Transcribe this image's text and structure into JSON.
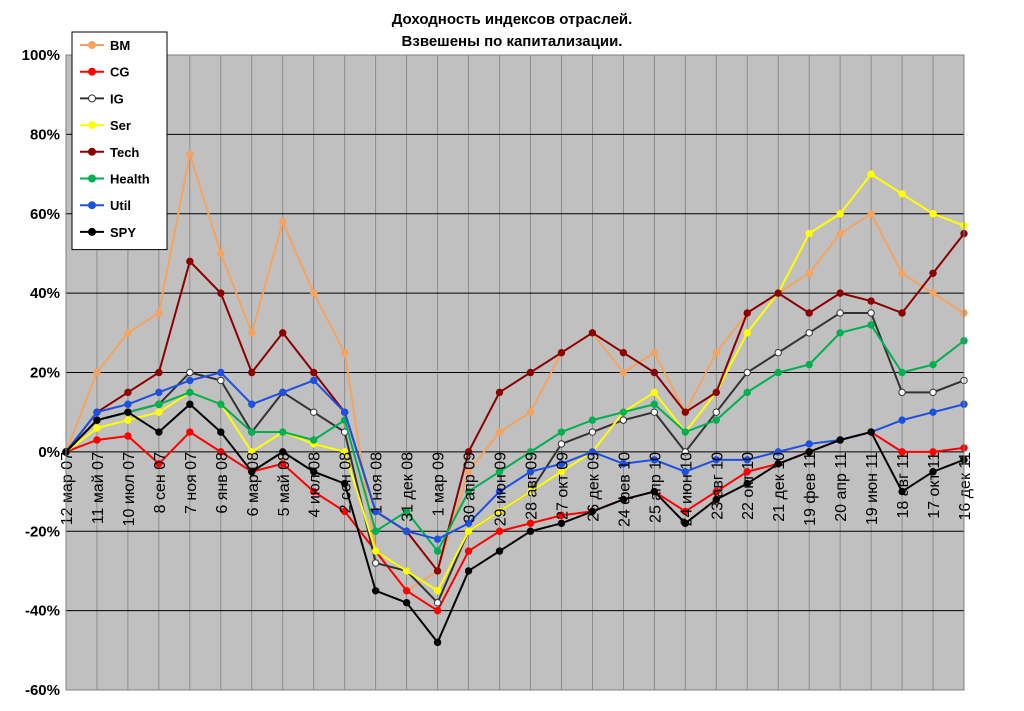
{
  "chart_data": {
    "type": "line",
    "title": "Доходность индексов отраслей.",
    "subtitle": "Взвешены по капитализации.",
    "xlabel": "",
    "ylabel": "",
    "y_tick_labels": [
      "100%",
      "80%",
      "60%",
      "40%",
      "20%",
      "0%",
      "-20%",
      "-40%",
      "-60%"
    ],
    "ylim": [
      -60,
      100
    ],
    "grid": "horizontal",
    "legend_position": "top-left",
    "x_tick_labels": [
      "12 мар 07",
      "11 май 07",
      "10 июл 07",
      "8 сен 07",
      "7 ноя 07",
      "6 янв 08",
      "6 мар 08",
      "5 май 08",
      "4 июл 08",
      "2 сен 08",
      "1 ноя 08",
      "31 дек 08",
      "1 мар 09",
      "30 апр 09",
      "29 июн 09",
      "28 авг 09",
      "27 окт 09",
      "26 дек 09",
      "24 фев 10",
      "25 апр 10",
      "24 июн 10",
      "23 авг 10",
      "22 окт 10",
      "21 дек 10",
      "19 фев 11",
      "20 апр 11",
      "19 июн 11",
      "18 авг 11",
      "17 окт 11",
      "16 дек 11"
    ],
    "x": [
      "12 мар 07",
      "11 май 07",
      "10 июл 07",
      "8 сен 07",
      "7 ноя 07",
      "6 янв 08",
      "6 мар 08",
      "5 май 08",
      "4 июл 08",
      "2 сен 08",
      "1 ноя 08",
      "31 дек 08",
      "1 мар 09",
      "30 апр 09",
      "29 июн 09",
      "28 авг 09",
      "27 окт 09",
      "26 дек 09",
      "24 фев 10",
      "25 апр 10",
      "24 июн 10",
      "23 авг 10",
      "22 окт 10",
      "21 дек 10",
      "19 фев 11",
      "20 апр 11",
      "19 июн 11",
      "18 авг 11",
      "17 окт 11",
      "16 дек 11"
    ],
    "series": [
      {
        "name": "BM",
        "color": "#f4a460",
        "marker": "filled",
        "values": [
          0,
          20,
          30,
          35,
          75,
          50,
          30,
          58,
          40,
          25,
          -25,
          -35,
          -30,
          -5,
          5,
          10,
          25,
          30,
          20,
          25,
          10,
          25,
          35,
          40,
          45,
          55,
          60,
          45,
          40,
          35
        ]
      },
      {
        "name": "CG",
        "color": "#ff0000",
        "marker": "filled",
        "values": [
          0,
          3,
          4,
          -3,
          5,
          0,
          -5,
          -3,
          -10,
          -15,
          -25,
          -35,
          -40,
          -25,
          -20,
          -18,
          -16,
          -15,
          -12,
          -10,
          -15,
          -10,
          -5,
          -3,
          0,
          3,
          5,
          0,
          0,
          1
        ]
      },
      {
        "name": "IG",
        "color": "#ffffff",
        "marker": "hollow",
        "values": [
          0,
          8,
          10,
          12,
          20,
          18,
          5,
          15,
          10,
          5,
          -28,
          -30,
          -38,
          -20,
          -15,
          -10,
          2,
          5,
          8,
          10,
          0,
          10,
          20,
          25,
          30,
          35,
          35,
          15,
          15,
          18
        ]
      },
      {
        "name": "Ser",
        "color": "#ffff00",
        "marker": "filled",
        "values": [
          0,
          6,
          8,
          10,
          15,
          12,
          0,
          5,
          2,
          0,
          -25,
          -30,
          -35,
          -20,
          -15,
          -10,
          -5,
          0,
          10,
          15,
          5,
          15,
          30,
          40,
          55,
          60,
          70,
          65,
          60,
          57
        ]
      },
      {
        "name": "Tech",
        "color": "#8b0000",
        "marker": "filled",
        "values": [
          0,
          10,
          15,
          20,
          48,
          40,
          20,
          30,
          20,
          10,
          -15,
          -20,
          -30,
          0,
          15,
          20,
          25,
          30,
          25,
          20,
          10,
          15,
          35,
          40,
          35,
          40,
          38,
          35,
          45,
          55
        ]
      },
      {
        "name": "Health",
        "color": "#00b050",
        "marker": "filled",
        "values": [
          0,
          8,
          10,
          12,
          15,
          12,
          5,
          5,
          3,
          8,
          -20,
          -15,
          -25,
          -10,
          -5,
          0,
          5,
          8,
          10,
          12,
          5,
          8,
          15,
          20,
          22,
          30,
          32,
          20,
          22,
          28
        ]
      },
      {
        "name": "Util",
        "color": "#1e50e0",
        "marker": "filled",
        "values": [
          0,
          10,
          12,
          15,
          18,
          20,
          12,
          15,
          18,
          10,
          -15,
          -20,
          -22,
          -18,
          -10,
          -5,
          -3,
          0,
          -3,
          -2,
          -5,
          -2,
          -2,
          0,
          2,
          3,
          5,
          8,
          10,
          12
        ]
      },
      {
        "name": "SPY",
        "color": "#000000",
        "marker": "filled",
        "values": [
          0,
          8,
          10,
          5,
          12,
          5,
          -5,
          0,
          -5,
          -8,
          -35,
          -38,
          -48,
          -30,
          -25,
          -20,
          -18,
          -15,
          -12,
          -10,
          -18,
          -12,
          -8,
          -3,
          0,
          3,
          5,
          -10,
          -5,
          -2
        ]
      }
    ]
  }
}
